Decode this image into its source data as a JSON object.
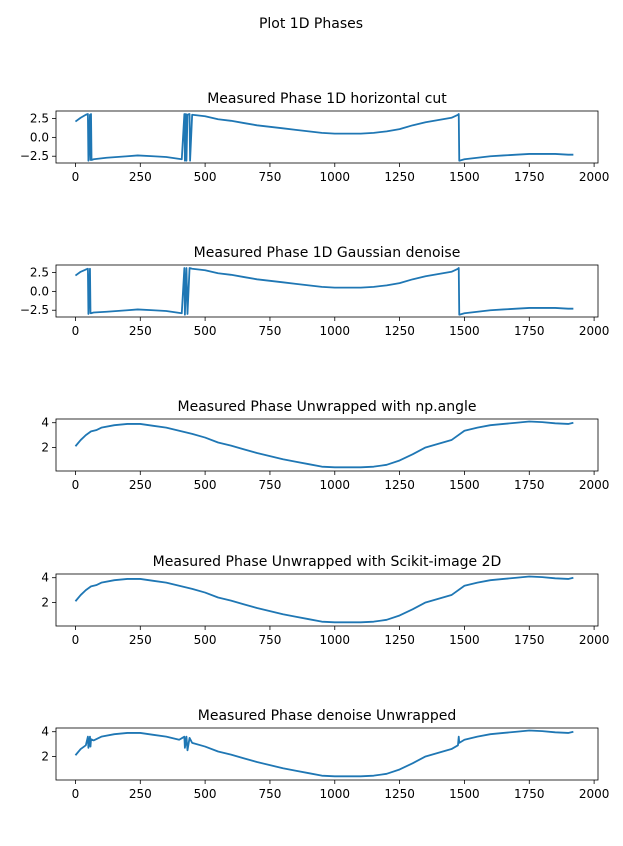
{
  "figure_title": "Plot 1D Phases",
  "colors": {
    "line": "#1f77b4"
  },
  "chart_data": [
    {
      "type": "line",
      "title": "Measured Phase 1D horizontal cut",
      "xlim": [
        -75,
        2015
      ],
      "ylim": [
        -3.4,
        3.5
      ],
      "xticks": [
        0,
        250,
        500,
        750,
        1000,
        1250,
        1500,
        1750,
        2000
      ],
      "yticks": [
        2.5,
        0.0,
        -2.5
      ],
      "ytick_labels": [
        "2.5",
        "0.0",
        "−2.5"
      ],
      "series": [
        {
          "x": [
            0,
            20,
            40,
            48,
            50,
            56,
            58,
            60,
            62,
            70,
            120,
            200,
            240,
            300,
            350,
            410,
            420,
            422,
            426,
            428,
            432,
            440,
            442,
            450,
            500,
            550,
            600,
            650,
            700,
            750,
            800,
            850,
            900,
            950,
            1000,
            1050,
            1100,
            1150,
            1200,
            1250,
            1300,
            1350,
            1400,
            1450,
            1475,
            1478,
            1480,
            1500,
            1550,
            1600,
            1650,
            1700,
            1750,
            1800,
            1850,
            1900,
            1920
          ],
          "y": [
            2.1,
            2.6,
            3.0,
            3.1,
            -3.1,
            3.0,
            -3.0,
            3.1,
            -3.0,
            -2.9,
            -2.7,
            -2.5,
            -2.4,
            -2.5,
            -2.6,
            -2.9,
            3.1,
            -3.1,
            3.1,
            -3.1,
            3.0,
            3.1,
            -3.1,
            3.0,
            2.8,
            2.4,
            2.2,
            1.9,
            1.6,
            1.4,
            1.2,
            1.0,
            0.8,
            0.6,
            0.5,
            0.5,
            0.5,
            0.6,
            0.8,
            1.1,
            1.6,
            2.0,
            2.3,
            2.6,
            3.0,
            3.1,
            -3.1,
            -2.9,
            -2.7,
            -2.5,
            -2.4,
            -2.3,
            -2.2,
            -2.2,
            -2.2,
            -2.3,
            -2.3
          ]
        }
      ]
    },
    {
      "type": "line",
      "title": "Measured Phase 1D Gaussian denoise",
      "xlim": [
        -75,
        2015
      ],
      "ylim": [
        -3.4,
        3.5
      ],
      "xticks": [
        0,
        250,
        500,
        750,
        1000,
        1250,
        1500,
        1750,
        2000
      ],
      "yticks": [
        2.5,
        0.0,
        -2.5
      ],
      "ytick_labels": [
        "2.5",
        "0.0",
        "−2.5"
      ],
      "series": [
        {
          "x": [
            0,
            20,
            40,
            48,
            50,
            56,
            58,
            60,
            70,
            120,
            200,
            240,
            300,
            350,
            410,
            420,
            422,
            428,
            432,
            440,
            450,
            500,
            550,
            600,
            650,
            700,
            750,
            800,
            850,
            900,
            950,
            1000,
            1050,
            1100,
            1150,
            1200,
            1250,
            1300,
            1350,
            1400,
            1450,
            1475,
            1478,
            1480,
            1500,
            1550,
            1600,
            1650,
            1700,
            1750,
            1800,
            1850,
            1900,
            1920
          ],
          "y": [
            2.1,
            2.6,
            2.9,
            3.0,
            -3.0,
            3.0,
            -2.9,
            -2.9,
            -2.8,
            -2.7,
            -2.5,
            -2.4,
            -2.5,
            -2.6,
            -2.9,
            3.1,
            -3.1,
            3.1,
            -3.0,
            3.1,
            3.0,
            2.8,
            2.4,
            2.2,
            1.9,
            1.6,
            1.4,
            1.2,
            1.0,
            0.8,
            0.6,
            0.5,
            0.5,
            0.5,
            0.6,
            0.8,
            1.1,
            1.6,
            2.0,
            2.3,
            2.6,
            3.0,
            3.1,
            -3.1,
            -2.9,
            -2.7,
            -2.5,
            -2.4,
            -2.3,
            -2.2,
            -2.2,
            -2.2,
            -2.3,
            -2.3
          ]
        }
      ]
    },
    {
      "type": "line",
      "title": "Measured Phase Unwrapped with np.angle",
      "xlim": [
        -75,
        2015
      ],
      "ylim": [
        0.1,
        4.3
      ],
      "xticks": [
        0,
        250,
        500,
        750,
        1000,
        1250,
        1500,
        1750,
        2000
      ],
      "yticks": [
        4,
        2
      ],
      "ytick_labels": [
        "4",
        "2"
      ],
      "series": [
        {
          "x": [
            0,
            20,
            40,
            60,
            80,
            100,
            150,
            200,
            250,
            300,
            350,
            400,
            450,
            500,
            550,
            600,
            650,
            700,
            750,
            800,
            850,
            900,
            950,
            1000,
            1050,
            1100,
            1150,
            1200,
            1250,
            1300,
            1350,
            1400,
            1450,
            1500,
            1550,
            1600,
            1650,
            1700,
            1750,
            1800,
            1850,
            1900,
            1920
          ],
          "y": [
            2.1,
            2.6,
            3.0,
            3.3,
            3.4,
            3.6,
            3.8,
            3.9,
            3.9,
            3.75,
            3.6,
            3.35,
            3.1,
            2.8,
            2.4,
            2.15,
            1.85,
            1.55,
            1.3,
            1.05,
            0.85,
            0.65,
            0.45,
            0.4,
            0.4,
            0.4,
            0.45,
            0.6,
            0.95,
            1.45,
            2.0,
            2.3,
            2.6,
            3.35,
            3.6,
            3.8,
            3.9,
            4.0,
            4.1,
            4.05,
            3.95,
            3.9,
            4.0
          ]
        }
      ]
    },
    {
      "type": "line",
      "title": "Measured Phase Unwrapped with Scikit-image 2D",
      "xlim": [
        -75,
        2015
      ],
      "ylim": [
        0.1,
        4.3
      ],
      "xticks": [
        0,
        250,
        500,
        750,
        1000,
        1250,
        1500,
        1750,
        2000
      ],
      "yticks": [
        4,
        2
      ],
      "ytick_labels": [
        "4",
        "2"
      ],
      "series": [
        {
          "x": [
            0,
            20,
            40,
            60,
            80,
            100,
            150,
            200,
            250,
            300,
            350,
            400,
            450,
            500,
            550,
            600,
            650,
            700,
            750,
            800,
            850,
            900,
            950,
            1000,
            1050,
            1100,
            1150,
            1200,
            1250,
            1300,
            1350,
            1400,
            1450,
            1500,
            1550,
            1600,
            1650,
            1700,
            1750,
            1800,
            1850,
            1900,
            1920
          ],
          "y": [
            2.1,
            2.6,
            3.0,
            3.3,
            3.4,
            3.6,
            3.8,
            3.9,
            3.9,
            3.75,
            3.6,
            3.35,
            3.1,
            2.8,
            2.4,
            2.15,
            1.85,
            1.55,
            1.3,
            1.05,
            0.85,
            0.65,
            0.45,
            0.4,
            0.4,
            0.4,
            0.45,
            0.6,
            0.95,
            1.45,
            2.0,
            2.3,
            2.6,
            3.35,
            3.6,
            3.8,
            3.9,
            4.0,
            4.1,
            4.05,
            3.95,
            3.9,
            4.0
          ]
        }
      ]
    },
    {
      "type": "line",
      "title": "Measured Phase denoise Unwrapped",
      "xlim": [
        -75,
        2015
      ],
      "ylim": [
        0.1,
        4.3
      ],
      "xticks": [
        0,
        250,
        500,
        750,
        1000,
        1250,
        1500,
        1750,
        2000
      ],
      "yticks": [
        4,
        2
      ],
      "ytick_labels": [
        "4",
        "2"
      ],
      "series": [
        {
          "x": [
            0,
            20,
            40,
            48,
            50,
            56,
            58,
            60,
            70,
            100,
            150,
            200,
            250,
            300,
            350,
            400,
            420,
            422,
            428,
            432,
            440,
            450,
            500,
            550,
            600,
            650,
            700,
            750,
            800,
            850,
            900,
            950,
            1000,
            1050,
            1100,
            1150,
            1200,
            1250,
            1300,
            1350,
            1400,
            1450,
            1475,
            1478,
            1480,
            1500,
            1550,
            1600,
            1650,
            1700,
            1750,
            1800,
            1850,
            1900,
            1920
          ],
          "y": [
            2.1,
            2.6,
            2.9,
            3.6,
            2.7,
            3.6,
            2.8,
            3.4,
            3.3,
            3.6,
            3.8,
            3.9,
            3.9,
            3.75,
            3.6,
            3.35,
            3.6,
            2.7,
            3.6,
            2.5,
            3.5,
            3.1,
            2.8,
            2.4,
            2.15,
            1.85,
            1.55,
            1.3,
            1.05,
            0.85,
            0.65,
            0.45,
            0.4,
            0.4,
            0.4,
            0.45,
            0.6,
            0.95,
            1.45,
            2.0,
            2.3,
            2.6,
            2.9,
            3.6,
            3.1,
            3.35,
            3.6,
            3.8,
            3.9,
            4.0,
            4.1,
            4.05,
            3.95,
            3.9,
            4.0
          ]
        }
      ]
    }
  ]
}
